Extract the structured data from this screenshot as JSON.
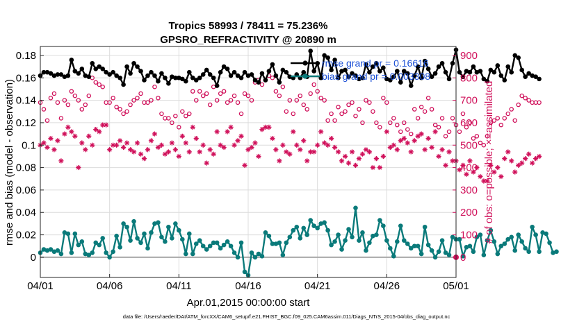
{
  "chart_data": {
    "type": "line",
    "title": "Tropics 58993 / 78411 = 75.236%",
    "subtitle": "GPSRO_REFRACTIVITY @ 20890 m",
    "xlabel": "Apr.01,2015 00:00:00 start",
    "ylabel_left": "rmse and bias (model - observation)",
    "ylabel_right": "# of obs: o=possible; ×=assimilated",
    "footer": "data file: /Users/raeder/DAI/ATM_forcXX/CAM6_setup/f.e21.FHIST_BGC.f09_025.CAM6assim.011/Diags_NTrS_2015-04/obs_diag_output.nc",
    "x_ticks": [
      "04/01",
      "04/06",
      "04/11",
      "04/16",
      "04/21",
      "04/26",
      "05/01"
    ],
    "y_left_ticks": [
      "0",
      "0.02",
      "0.04",
      "0.06",
      "0.08",
      "0.1",
      "0.12",
      "0.14",
      "0.16",
      "0.18"
    ],
    "y_right_ticks": [
      "0",
      "100",
      "200",
      "300",
      "400",
      "500",
      "600",
      "700",
      "800",
      "900"
    ],
    "ylim_left": [
      -0.018,
      0.188
    ],
    "ylim_right": [
      -90,
      940
    ],
    "xlim_days": [
      0,
      30
    ],
    "colors": {
      "rmse": "#000000",
      "bias": "#0a7a7a",
      "obs": "#d0105a",
      "zero": "#a8a8a8"
    },
    "legend": {
      "rmse_label": "rmse grand pr = 0.16616",
      "bias_label": "bias grand pr = 0.003308",
      "placement": "top-right"
    },
    "series": [
      {
        "name": "rmse",
        "step_days": 0.25,
        "values": [
          0.162,
          0.165,
          0.165,
          0.164,
          0.162,
          0.163,
          0.163,
          0.161,
          0.162,
          0.176,
          0.166,
          0.164,
          0.168,
          0.162,
          0.161,
          0.173,
          0.168,
          0.17,
          0.168,
          0.165,
          0.163,
          0.165,
          0.162,
          0.16,
          0.154,
          0.17,
          0.164,
          0.173,
          0.17,
          0.166,
          0.158,
          0.162,
          0.165,
          0.162,
          0.157,
          0.164,
          0.16,
          0.155,
          0.161,
          0.16,
          0.16,
          0.159,
          0.157,
          0.165,
          0.16,
          0.158,
          0.16,
          0.163,
          0.167,
          0.163,
          0.16,
          0.153,
          0.165,
          0.17,
          0.168,
          0.162,
          0.165,
          0.162,
          0.16,
          0.165,
          0.162,
          0.163,
          0.158,
          0.156,
          0.164,
          0.158,
          0.166,
          0.172,
          0.162,
          0.156,
          0.167,
          0.165,
          0.161,
          0.16,
          0.163,
          0.16,
          0.165,
          0.161,
          0.184,
          0.166,
          0.173,
          0.16,
          0.18,
          0.178,
          0.167,
          0.176,
          0.16,
          0.166,
          0.167,
          0.161,
          0.164,
          0.162,
          0.159,
          0.16,
          0.172,
          0.165,
          0.17,
          0.173,
          0.166,
          0.169,
          0.159,
          0.158,
          0.161,
          0.166,
          0.156,
          0.166,
          0.164,
          0.153,
          0.162,
          0.17,
          0.16,
          0.175,
          0.168,
          0.161,
          0.164,
          0.17,
          0.173,
          0.165,
          0.159,
          0.173,
          0.185,
          0.165,
          0.161,
          0.166,
          0.165,
          0.17,
          0.165,
          0.166,
          0.159,
          0.157,
          0.167,
          0.165,
          0.171,
          0.162,
          0.158,
          0.17,
          0.165,
          0.18,
          0.178,
          0.167,
          0.161,
          0.164,
          0.162,
          0.161,
          0.159
        ]
      },
      {
        "name": "bias",
        "step_days": 0.25,
        "values": [
          0.004,
          0.007,
          0.006,
          0.007,
          0.005,
          0.006,
          0.003,
          0.022,
          0.021,
          0.004,
          0.021,
          0.011,
          0.014,
          0.003,
          0.002,
          0.004,
          0.013,
          0.011,
          0.017,
          0.004,
          0.0,
          0.005,
          0.019,
          0.009,
          0.03,
          0.027,
          0.015,
          0.032,
          0.017,
          0.013,
          0.021,
          0.008,
          0.022,
          0.03,
          0.031,
          0.018,
          0.014,
          0.027,
          0.017,
          0.03,
          0.024,
          0.016,
          0.003,
          0.021,
          0.003,
          0.012,
          0.015,
          0.01,
          0.007,
          0.01,
          0.013,
          0.013,
          0.008,
          0.011,
          0.014,
          0.01,
          0.004,
          0.0,
          0.013,
          -0.013,
          -0.016,
          0.004,
          0.0,
          0.003,
          0.001,
          0.022,
          0.019,
          0.012,
          0.012,
          0.013,
          0.002,
          0.013,
          0.018,
          0.024,
          0.027,
          0.017,
          0.026,
          0.02,
          0.033,
          0.028,
          0.026,
          0.03,
          0.031,
          0.024,
          0.011,
          0.014,
          0.02,
          0.007,
          0.015,
          0.025,
          0.018,
          0.044,
          0.015,
          0.022,
          0.006,
          0.013,
          0.019,
          0.02,
          0.033,
          0.028,
          0.015,
          0.008,
          0.001,
          0.014,
          0.028,
          0.015,
          0.012,
          0.008,
          0.01,
          0.01,
          0.003,
          0.027,
          0.011,
          0.006,
          0.0,
          0.005,
          0.015,
          0.004,
          0.002,
          0.018,
          0.016,
          0.016,
          0.001,
          0.009,
          0.01,
          0.005,
          0.018,
          0.02,
          0.002,
          0.015,
          0.024,
          0.014,
          0.003,
          0.01,
          0.012,
          0.016,
          0.018,
          0.006,
          0.02,
          0.014,
          0.008,
          0.005,
          0.027,
          0.02,
          0.005,
          0.022,
          0.021,
          0.013,
          0.004,
          0.005
        ]
      },
      {
        "name": "obs_possible",
        "step_days": 0.25,
        "values": [
          690,
          660,
          610,
          710,
          730,
          690,
          620,
          700,
          680,
          740,
          720,
          700,
          660,
          680,
          720,
          800,
          780,
          770,
          760,
          690,
          690,
          710,
          670,
          660,
          640,
          650,
          680,
          700,
          710,
          730,
          690,
          690,
          700,
          760,
          710,
          640,
          620,
          620,
          600,
          630,
          580,
          650,
          630,
          640,
          740,
          700,
          740,
          720,
          730,
          680,
          760,
          700,
          730,
          740,
          690,
          700,
          720,
          690,
          640,
          730,
          720,
          700,
          780,
          790,
          770,
          790,
          810,
          800,
          740,
          720,
          760,
          650,
          700,
          640,
          700,
          720,
          680,
          660,
          730,
          770,
          740,
          710,
          700,
          610,
          640,
          610,
          670,
          640,
          650,
          680,
          690,
          630,
          660,
          600,
          700,
          690,
          650,
          600,
          580,
          710,
          690,
          600,
          620,
          590,
          560,
          600,
          570,
          550,
          660,
          620,
          670,
          650,
          710,
          660,
          590,
          580,
          620,
          540,
          560,
          620,
          590,
          560,
          640,
          580,
          600,
          530,
          540,
          510,
          500,
          540,
          600,
          610,
          620,
          590,
          620,
          640,
          660,
          610,
          680,
          720,
          710,
          700,
          690,
          690,
          690
        ]
      },
      {
        "name": "obs_assimilated",
        "step_days": 0.25,
        "values": [
          500,
          510,
          490,
          530,
          480,
          520,
          430,
          550,
          580,
          560,
          540,
          400,
          510,
          480,
          540,
          500,
          570,
          560,
          590,
          590,
          480,
          500,
          500,
          520,
          490,
          510,
          480,
          470,
          510,
          460,
          440,
          480,
          520,
          550,
          490,
          500,
          460,
          470,
          510,
          480,
          450,
          540,
          510,
          470,
          580,
          530,
          470,
          500,
          420,
          480,
          460,
          560,
          500,
          490,
          560,
          580,
          500,
          520,
          540,
          410,
          480,
          490,
          510,
          450,
          570,
          580,
          580,
          530,
          480,
          430,
          500,
          470,
          460,
          560,
          500,
          480,
          520,
          430,
          470,
          470,
          500,
          560,
          510,
          500,
          530,
          490,
          470,
          430,
          450,
          420,
          470,
          410,
          440,
          460,
          480,
          470,
          400,
          440,
          400,
          450,
          560,
          490,
          500,
          480,
          520,
          530,
          510,
          470,
          520,
          540,
          550,
          480,
          530,
          490,
          560,
          450,
          480,
          410,
          470,
          430,
          430,
          390,
          410,
          370,
          430,
          380,
          400,
          360,
          340,
          340,
          410,
          380,
          400,
          360,
          440,
          470,
          430,
          380,
          410,
          420,
          440,
          460,
          420,
          440,
          450
        ]
      }
    ]
  }
}
